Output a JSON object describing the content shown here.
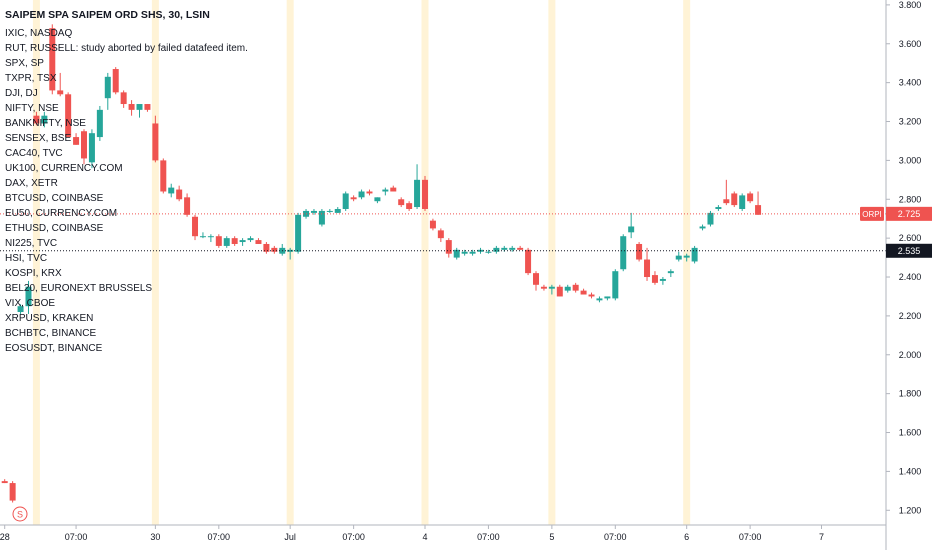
{
  "header": {
    "title": "SAIPEM SPA SAIPEM ORD SHS, 30, LSIN"
  },
  "legend": [
    "IXIC, NASDAQ",
    "RUT, RUSSELL: study aborted by failed datafeed item.",
    "SPX, SP",
    "TXPR, TSX",
    "DJI, DJ",
    "NIFTY, NSE",
    "BANKNIFTY, NSE",
    "SENSEX, BSE",
    "CAC40, TVC",
    "UK100, CURRENCY.COM",
    "DAX, XETR",
    "BTCUSD, COINBASE",
    "EU50, CURRENCY.COM",
    "ETHUSD, COINBASE",
    "NI225, TVC",
    "HSI, TVC",
    "KOSPI, KRX",
    "BEL20, EURONEXT BRUSSELS",
    "VIX, CBOE",
    "XRPUSD, KRAKEN",
    "BCHBTC, BINANCE",
    "EOSUSDT, BINANCE"
  ],
  "price_tags": [
    {
      "symbol": "ORPI",
      "value": "2.725",
      "color": "#ef5350"
    },
    {
      "symbol": "",
      "value": "2.535",
      "color": "#131722"
    }
  ],
  "dividend_marker": "S",
  "colors": {
    "up": "#26a69a",
    "down": "#ef5350",
    "session_highlight": "#fff3d6"
  },
  "chart_data": {
    "type": "candlestick",
    "y_ticks": [
      "3.800",
      "3.600",
      "3.400",
      "3.200",
      "3.000",
      "2.800",
      "2.600",
      "2.400",
      "2.200",
      "2.000",
      "1.800",
      "1.600",
      "1.400",
      "1.200"
    ],
    "ylim": [
      1.15,
      3.82
    ],
    "x_ticks": [
      {
        "label": "28",
        "i": 0
      },
      {
        "label": "07:00",
        "i": 9
      },
      {
        "label": "30",
        "i": 19
      },
      {
        "label": "07:00",
        "i": 27
      },
      {
        "label": "Jul",
        "i": 36
      },
      {
        "label": "07:00",
        "i": 44
      },
      {
        "label": "4",
        "i": 53
      },
      {
        "label": "07:00",
        "i": 61
      },
      {
        "label": "5",
        "i": 69
      },
      {
        "label": "07:00",
        "i": 77
      },
      {
        "label": "6",
        "i": 86
      },
      {
        "label": "07:00",
        "i": 94
      },
      {
        "label": "7",
        "i": 103
      }
    ],
    "session_starts": [
      4,
      19,
      36,
      53,
      69,
      86
    ],
    "current_price": 2.725,
    "reference_price": 2.535,
    "candles": [
      {
        "o": 1.35,
        "h": 1.36,
        "l": 1.34,
        "c": 1.34
      },
      {
        "o": 1.34,
        "h": 1.35,
        "l": 1.24,
        "c": 1.25
      },
      {
        "o": 2.22,
        "h": 2.26,
        "l": 2.21,
        "c": 2.25
      },
      {
        "o": 2.25,
        "h": 2.38,
        "l": 2.21,
        "c": 2.35
      },
      {
        "o": 3.23,
        "h": 3.25,
        "l": 3.18,
        "c": 3.19
      },
      {
        "o": 3.19,
        "h": 3.25,
        "l": 3.17,
        "c": 3.23
      },
      {
        "o": 3.68,
        "h": 3.7,
        "l": 3.34,
        "c": 3.36
      },
      {
        "o": 3.36,
        "h": 3.45,
        "l": 3.33,
        "c": 3.34
      },
      {
        "o": 3.34,
        "h": 3.35,
        "l": 3.12,
        "c": 3.12
      },
      {
        "o": 3.12,
        "h": 3.14,
        "l": 3.08,
        "c": 3.08
      },
      {
        "o": 3.15,
        "h": 3.16,
        "l": 2.98,
        "c": 3.01
      },
      {
        "o": 2.99,
        "h": 3.16,
        "l": 2.96,
        "c": 3.14
      },
      {
        "o": 3.12,
        "h": 3.28,
        "l": 3.1,
        "c": 3.26
      },
      {
        "o": 3.32,
        "h": 3.45,
        "l": 3.26,
        "c": 3.43
      },
      {
        "o": 3.47,
        "h": 3.48,
        "l": 3.34,
        "c": 3.35
      },
      {
        "o": 3.35,
        "h": 3.36,
        "l": 3.27,
        "c": 3.29
      },
      {
        "o": 3.29,
        "h": 3.31,
        "l": 3.23,
        "c": 3.26
      },
      {
        "o": 3.26,
        "h": 3.28,
        "l": 3.22,
        "c": 3.29
      },
      {
        "o": 3.29,
        "h": 3.29,
        "l": 3.25,
        "c": 3.26
      },
      {
        "o": 3.19,
        "h": 3.23,
        "l": 2.99,
        "c": 3.0
      },
      {
        "o": 3.0,
        "h": 3.01,
        "l": 2.83,
        "c": 2.84
      },
      {
        "o": 2.83,
        "h": 2.88,
        "l": 2.81,
        "c": 2.86
      },
      {
        "o": 2.85,
        "h": 2.87,
        "l": 2.79,
        "c": 2.8
      },
      {
        "o": 2.81,
        "h": 2.83,
        "l": 2.71,
        "c": 2.72
      },
      {
        "o": 2.71,
        "h": 2.72,
        "l": 2.59,
        "c": 2.61
      },
      {
        "o": 2.61,
        "h": 2.63,
        "l": 2.6,
        "c": 2.61
      },
      {
        "o": 2.61,
        "h": 2.62,
        "l": 2.58,
        "c": 2.61
      },
      {
        "o": 2.61,
        "h": 2.62,
        "l": 2.55,
        "c": 2.56
      },
      {
        "o": 2.56,
        "h": 2.61,
        "l": 2.55,
        "c": 2.6
      },
      {
        "o": 2.6,
        "h": 2.61,
        "l": 2.56,
        "c": 2.57
      },
      {
        "o": 2.58,
        "h": 2.6,
        "l": 2.56,
        "c": 2.59
      },
      {
        "o": 2.59,
        "h": 2.61,
        "l": 2.58,
        "c": 2.6
      },
      {
        "o": 2.59,
        "h": 2.6,
        "l": 2.57,
        "c": 2.57
      },
      {
        "o": 2.57,
        "h": 2.58,
        "l": 2.52,
        "c": 2.53
      },
      {
        "o": 2.55,
        "h": 2.56,
        "l": 2.52,
        "c": 2.53
      },
      {
        "o": 2.52,
        "h": 2.57,
        "l": 2.51,
        "c": 2.55
      },
      {
        "o": 2.53,
        "h": 2.55,
        "l": 2.49,
        "c": 2.54
      },
      {
        "o": 2.53,
        "h": 2.73,
        "l": 2.52,
        "c": 2.72
      },
      {
        "o": 2.71,
        "h": 2.75,
        "l": 2.7,
        "c": 2.74
      },
      {
        "o": 2.73,
        "h": 2.75,
        "l": 2.72,
        "c": 2.74
      },
      {
        "o": 2.67,
        "h": 2.75,
        "l": 2.66,
        "c": 2.74
      },
      {
        "o": 2.74,
        "h": 2.75,
        "l": 2.73,
        "c": 2.74
      },
      {
        "o": 2.73,
        "h": 2.76,
        "l": 2.73,
        "c": 2.75
      },
      {
        "o": 2.75,
        "h": 2.84,
        "l": 2.74,
        "c": 2.83
      },
      {
        "o": 2.81,
        "h": 2.82,
        "l": 2.79,
        "c": 2.8
      },
      {
        "o": 2.81,
        "h": 2.85,
        "l": 2.8,
        "c": 2.84
      },
      {
        "o": 2.84,
        "h": 2.85,
        "l": 2.82,
        "c": 2.83
      },
      {
        "o": 2.79,
        "h": 2.81,
        "l": 2.78,
        "c": 2.81
      },
      {
        "o": 2.84,
        "h": 2.86,
        "l": 2.82,
        "c": 2.85
      },
      {
        "o": 2.86,
        "h": 2.87,
        "l": 2.84,
        "c": 2.84
      },
      {
        "o": 2.8,
        "h": 2.81,
        "l": 2.76,
        "c": 2.77
      },
      {
        "o": 2.78,
        "h": 2.79,
        "l": 2.74,
        "c": 2.75
      },
      {
        "o": 2.76,
        "h": 2.98,
        "l": 2.75,
        "c": 2.9
      },
      {
        "o": 2.9,
        "h": 2.92,
        "l": 2.74,
        "c": 2.75
      },
      {
        "o": 2.69,
        "h": 2.7,
        "l": 2.64,
        "c": 2.65
      },
      {
        "o": 2.64,
        "h": 2.65,
        "l": 2.58,
        "c": 2.6
      },
      {
        "o": 2.59,
        "h": 2.6,
        "l": 2.5,
        "c": 2.52
      },
      {
        "o": 2.5,
        "h": 2.55,
        "l": 2.49,
        "c": 2.54
      },
      {
        "o": 2.52,
        "h": 2.54,
        "l": 2.51,
        "c": 2.53
      },
      {
        "o": 2.52,
        "h": 2.54,
        "l": 2.51,
        "c": 2.53
      },
      {
        "o": 2.53,
        "h": 2.55,
        "l": 2.52,
        "c": 2.54
      },
      {
        "o": 2.53,
        "h": 2.54,
        "l": 2.52,
        "c": 2.53
      },
      {
        "o": 2.53,
        "h": 2.56,
        "l": 2.52,
        "c": 2.55
      },
      {
        "o": 2.54,
        "h": 2.56,
        "l": 2.53,
        "c": 2.55
      },
      {
        "o": 2.54,
        "h": 2.56,
        "l": 2.53,
        "c": 2.55
      },
      {
        "o": 2.55,
        "h": 2.56,
        "l": 2.54,
        "c": 2.54
      },
      {
        "o": 2.54,
        "h": 2.55,
        "l": 2.41,
        "c": 2.42
      },
      {
        "o": 2.42,
        "h": 2.43,
        "l": 2.33,
        "c": 2.36
      },
      {
        "o": 2.35,
        "h": 2.36,
        "l": 2.33,
        "c": 2.34
      },
      {
        "o": 2.34,
        "h": 2.36,
        "l": 2.31,
        "c": 2.35
      },
      {
        "o": 2.35,
        "h": 2.36,
        "l": 2.3,
        "c": 2.3
      },
      {
        "o": 2.33,
        "h": 2.36,
        "l": 2.32,
        "c": 2.35
      },
      {
        "o": 2.36,
        "h": 2.37,
        "l": 2.32,
        "c": 2.33
      },
      {
        "o": 2.33,
        "h": 2.34,
        "l": 2.31,
        "c": 2.31
      },
      {
        "o": 2.31,
        "h": 2.32,
        "l": 2.29,
        "c": 2.3
      },
      {
        "o": 2.28,
        "h": 2.3,
        "l": 2.27,
        "c": 2.29
      },
      {
        "o": 2.29,
        "h": 2.3,
        "l": 2.28,
        "c": 2.3
      },
      {
        "o": 2.29,
        "h": 2.44,
        "l": 2.28,
        "c": 2.43
      },
      {
        "o": 2.44,
        "h": 2.62,
        "l": 2.43,
        "c": 2.61
      },
      {
        "o": 2.63,
        "h": 2.73,
        "l": 2.6,
        "c": 2.66
      },
      {
        "o": 2.57,
        "h": 2.58,
        "l": 2.48,
        "c": 2.49
      },
      {
        "o": 2.49,
        "h": 2.55,
        "l": 2.38,
        "c": 2.4
      },
      {
        "o": 2.41,
        "h": 2.43,
        "l": 2.36,
        "c": 2.37
      },
      {
        "o": 2.38,
        "h": 2.4,
        "l": 2.36,
        "c": 2.39
      },
      {
        "o": 2.42,
        "h": 2.44,
        "l": 2.4,
        "c": 2.43
      },
      {
        "o": 2.49,
        "h": 2.53,
        "l": 2.48,
        "c": 2.51
      },
      {
        "o": 2.5,
        "h": 2.52,
        "l": 2.48,
        "c": 2.51
      },
      {
        "o": 2.48,
        "h": 2.56,
        "l": 2.47,
        "c": 2.55
      },
      {
        "o": 2.65,
        "h": 2.67,
        "l": 2.64,
        "c": 2.66
      },
      {
        "o": 2.67,
        "h": 2.74,
        "l": 2.66,
        "c": 2.73
      },
      {
        "o": 2.75,
        "h": 2.77,
        "l": 2.74,
        "c": 2.76
      },
      {
        "o": 2.8,
        "h": 2.9,
        "l": 2.77,
        "c": 2.78
      },
      {
        "o": 2.83,
        "h": 2.84,
        "l": 2.76,
        "c": 2.77
      },
      {
        "o": 2.75,
        "h": 2.83,
        "l": 2.74,
        "c": 2.82
      },
      {
        "o": 2.83,
        "h": 2.84,
        "l": 2.78,
        "c": 2.79
      },
      {
        "o": 2.77,
        "h": 2.84,
        "l": 2.72,
        "c": 2.72
      }
    ]
  }
}
